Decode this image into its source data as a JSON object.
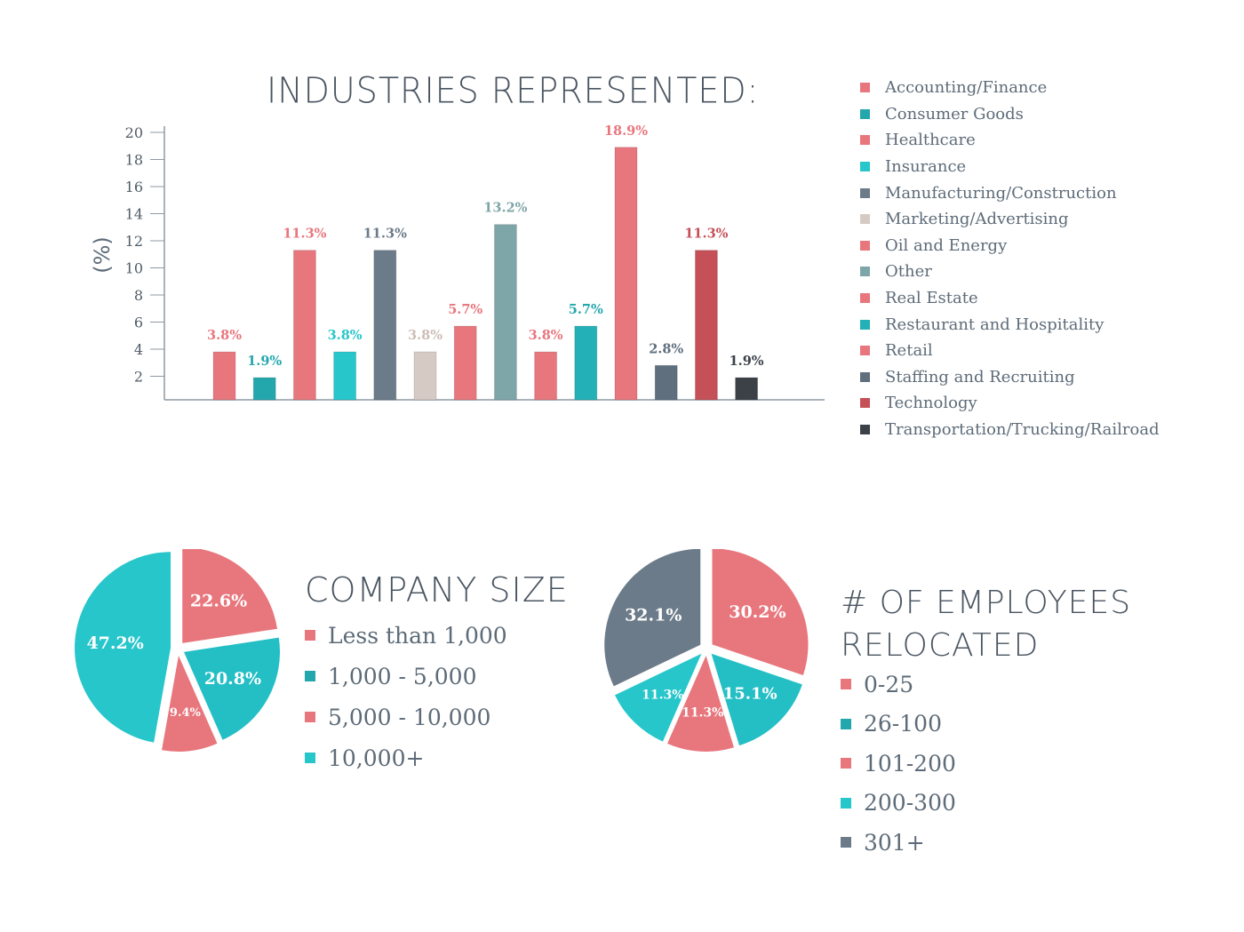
{
  "colors": {
    "coral": "#e8767d",
    "teal": "#26c6cb",
    "slate": "#6c7b89",
    "beige": "#d6cbc4",
    "sage": "#7ea6a8",
    "dark_red": "#c65058",
    "charcoal": "#3c4148"
  },
  "industries": {
    "title": "INDUSTRIES REPRESENTED:",
    "legend": [
      {
        "label": "Accounting/Finance",
        "color": "#e8767d"
      },
      {
        "label": "Consumer Goods",
        "color": "#23a7ad"
      },
      {
        "label": "Healthcare",
        "color": "#e8767d"
      },
      {
        "label": "Insurance",
        "color": "#26c6cb"
      },
      {
        "label": "Manufacturing/Construction",
        "color": "#6c7b89"
      },
      {
        "label": "Marketing/Advertising",
        "color": "#d6cbc4"
      },
      {
        "label": "Oil and Energy",
        "color": "#e8767d"
      },
      {
        "label": "Other",
        "color": "#7ea6a8"
      },
      {
        "label": "Real Estate",
        "color": "#e8767d"
      },
      {
        "label": "Restaurant and Hospitality",
        "color": "#23b0b6"
      },
      {
        "label": "Retail",
        "color": "#e8767d"
      },
      {
        "label": "Staffing and Recruiting",
        "color": "#5f6f7d"
      },
      {
        "label": "Technology",
        "color": "#c65058"
      },
      {
        "label": "Transportation/Trucking/Railroad",
        "color": "#3c4148"
      }
    ]
  },
  "company_size": {
    "title": "COMPANY SIZE",
    "legend": [
      {
        "label": "Less than 1,000",
        "color": "#e8767d"
      },
      {
        "label": "1,000 - 5,000",
        "color": "#23a7ad"
      },
      {
        "label": "5,000 - 10,000",
        "color": "#e8767d"
      },
      {
        "label": "10,000+",
        "color": "#26c6cb"
      }
    ]
  },
  "relocated": {
    "title_line1": "# OF EMPLOYEES",
    "title_line2": "RELOCATED",
    "legend": [
      {
        "label": "0-25",
        "color": "#e8767d"
      },
      {
        "label": "26-100",
        "color": "#23a7ad"
      },
      {
        "label": "101-200",
        "color": "#e8767d"
      },
      {
        "label": "200-300",
        "color": "#26c6cb"
      },
      {
        "label": "301+",
        "color": "#6c7b89"
      }
    ]
  },
  "chart_data": [
    {
      "type": "bar",
      "title": "INDUSTRIES REPRESENTED:",
      "xlabel": "",
      "ylabel": "(%)",
      "ylim": [
        0,
        20
      ],
      "yticks": [
        2,
        4,
        6,
        8,
        10,
        12,
        14,
        16,
        18,
        20
      ],
      "grid": false,
      "legend_position": "right",
      "categories": [
        "Accounting/Finance",
        "Consumer Goods",
        "Healthcare",
        "Insurance",
        "Manufacturing/Construction",
        "Marketing/Advertising",
        "Oil and Energy",
        "Other",
        "Real Estate",
        "Restaurant and Hospitality",
        "Retail",
        "Staffing and Recruiting",
        "Technology",
        "Transportation/Trucking/Railroad"
      ],
      "values": [
        3.8,
        1.9,
        11.3,
        3.8,
        11.3,
        3.8,
        5.7,
        13.2,
        3.8,
        5.7,
        18.9,
        2.8,
        11.3,
        1.9
      ],
      "labels": [
        "3.8%",
        "1.9%",
        "11.3%",
        "3.8%",
        "11.3%",
        "3.8%",
        "5.7%",
        "13.2%",
        "3.8%",
        "5.7%",
        "18.9%",
        "2.8%",
        "11.3%",
        "1.9%"
      ],
      "colors": [
        "#e8767d",
        "#23a7ad",
        "#e8767d",
        "#26c6cb",
        "#6c7b89",
        "#d6cbc4",
        "#e8767d",
        "#7ea6a8",
        "#e8767d",
        "#23b0b6",
        "#e8767d",
        "#5f6f7d",
        "#c65058",
        "#3c4148"
      ],
      "label_colors": [
        "#e8767d",
        "#23a7ad",
        "#e8767d",
        "#26c6cb",
        "#6c7b89",
        "#cbbdb4",
        "#e8767d",
        "#7ea6a8",
        "#e8767d",
        "#23a7ad",
        "#e8767d",
        "#5f6f7d",
        "#c65058",
        "#3c4148"
      ]
    },
    {
      "type": "pie",
      "title": "COMPANY SIZE",
      "categories": [
        "Less than 1,000",
        "1,000 - 5,000",
        "5,000 - 10,000",
        "10,000+"
      ],
      "values": [
        22.6,
        20.8,
        9.4,
        47.2
      ],
      "labels": [
        "22.6%",
        "20.8%",
        "9.4%",
        "47.2%"
      ],
      "colors": [
        "#e8767d",
        "#23bfc5",
        "#e8767d",
        "#26c6cb"
      ],
      "legend_position": "right"
    },
    {
      "type": "pie",
      "title": "# OF EMPLOYEES RELOCATED",
      "categories": [
        "0-25",
        "26-100",
        "101-200",
        "200-300",
        "301+"
      ],
      "values": [
        30.2,
        15.1,
        11.3,
        11.3,
        32.1
      ],
      "labels": [
        "30.2%",
        "15.1%",
        "11.3%",
        "11.3%",
        "32.1%"
      ],
      "colors": [
        "#e8767d",
        "#23bfc5",
        "#e8767d",
        "#26c6cb",
        "#6c7b89"
      ],
      "legend_position": "right"
    }
  ]
}
